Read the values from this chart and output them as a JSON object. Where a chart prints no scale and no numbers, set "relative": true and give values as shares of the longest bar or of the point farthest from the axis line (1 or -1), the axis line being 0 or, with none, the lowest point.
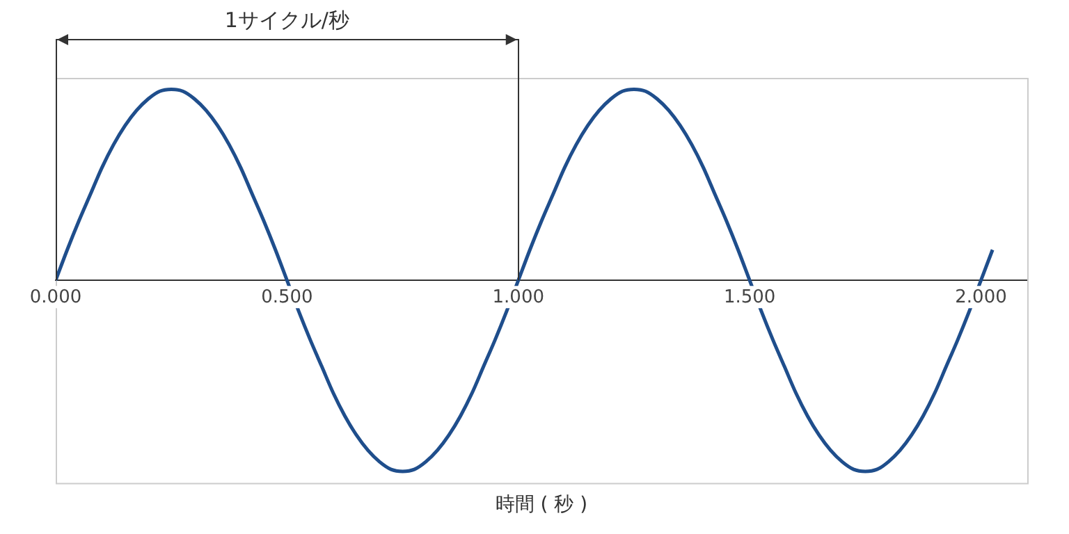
{
  "chart_data": {
    "type": "line",
    "relative": true,
    "xlabel": "時間 ( 秒 )",
    "annotations": [
      "1サイクル/秒"
    ],
    "xlim": [
      0,
      2.1
    ],
    "xticks": [
      {
        "value": 0,
        "label": "0.000"
      },
      {
        "value": 0.5,
        "label": "0.500"
      },
      {
        "value": 1,
        "label": "1.000"
      },
      {
        "value": 1.5,
        "label": "1.500"
      },
      {
        "value": 2,
        "label": "2.000"
      }
    ],
    "ref_lines": [
      {
        "axis": "x",
        "value": 0,
        "color": "#333333"
      },
      {
        "axis": "x",
        "value": 1,
        "color": "#333333"
      }
    ],
    "grid": false,
    "legend": false,
    "marker": "none",
    "line_style": "solid",
    "x": [
      0,
      0.025,
      0.05,
      0.075,
      0.1,
      0.125,
      0.15,
      0.175,
      0.2,
      0.225,
      0.25,
      0.275,
      0.3,
      0.325,
      0.35,
      0.375,
      0.4,
      0.425,
      0.45,
      0.475,
      0.5,
      0.525,
      0.55,
      0.575,
      0.6,
      0.625,
      0.65,
      0.675,
      0.7,
      0.725,
      0.75,
      0.775,
      0.8,
      0.825,
      0.85,
      0.875,
      0.9,
      0.925,
      0.95,
      0.975,
      1,
      1.025,
      1.05,
      1.075,
      1.1,
      1.125,
      1.15,
      1.175,
      1.2,
      1.225,
      1.25,
      1.275,
      1.3,
      1.325,
      1.35,
      1.375,
      1.4,
      1.425,
      1.45,
      1.475,
      1.5,
      1.525,
      1.55,
      1.575,
      1.6,
      1.625,
      1.65,
      1.675,
      1.7,
      1.725,
      1.75,
      1.775,
      1.8,
      1.825,
      1.85,
      1.875,
      1.9,
      1.925,
      1.95,
      1.975,
      2,
      2.025
    ],
    "series": [
      {
        "color": "#1f4e8c",
        "values": [
          0,
          0.16,
          0.31,
          0.45,
          0.59,
          0.71,
          0.81,
          0.89,
          0.95,
          0.99,
          1,
          0.99,
          0.95,
          0.89,
          0.81,
          0.71,
          0.59,
          0.45,
          0.31,
          0.16,
          0,
          -0.16,
          -0.31,
          -0.45,
          -0.59,
          -0.71,
          -0.81,
          -0.89,
          -0.95,
          -0.99,
          -1,
          -0.99,
          -0.95,
          -0.89,
          -0.81,
          -0.71,
          -0.59,
          -0.45,
          -0.31,
          -0.16,
          0,
          0.16,
          0.31,
          0.45,
          0.59,
          0.71,
          0.81,
          0.89,
          0.95,
          0.99,
          1,
          0.99,
          0.95,
          0.89,
          0.81,
          0.71,
          0.59,
          0.45,
          0.31,
          0.16,
          0,
          -0.16,
          -0.31,
          -0.45,
          -0.59,
          -0.71,
          -0.81,
          -0.89,
          -0.95,
          -0.99,
          -1,
          -0.99,
          -0.95,
          -0.89,
          -0.81,
          -0.71,
          -0.59,
          -0.45,
          -0.31,
          -0.16,
          0,
          0.16
        ]
      }
    ]
  }
}
